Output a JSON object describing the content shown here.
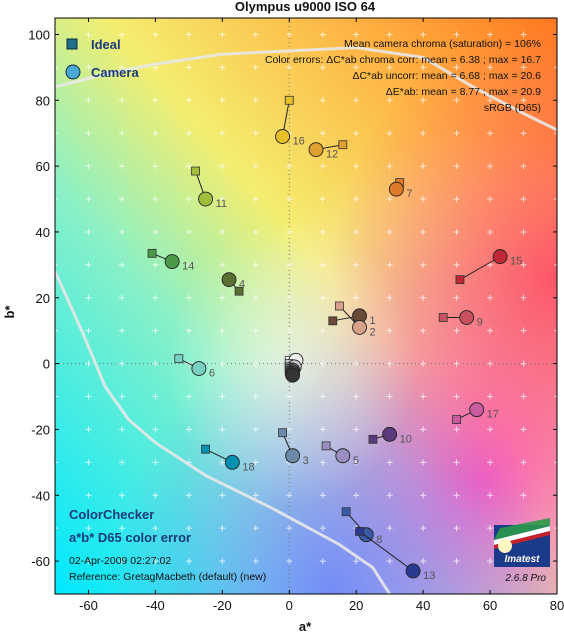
{
  "chart_data": {
    "type": "scatter",
    "title": "Olympus u9000 ISO 64",
    "xlabel": "a*",
    "ylabel": "b*",
    "xlim": [
      -70,
      80
    ],
    "ylim": [
      -70,
      105
    ],
    "xticks": [
      -60,
      -40,
      -20,
      0,
      20,
      40,
      60,
      80
    ],
    "yticks": [
      -60,
      -40,
      -20,
      0,
      20,
      40,
      60,
      80,
      100
    ],
    "grid": true,
    "legend_position": "top-left",
    "series": [
      {
        "name": "Ideal",
        "marker": "square",
        "color": "#1f6f8b"
      },
      {
        "name": "Camera",
        "marker": "circle",
        "color": "#4aa8d8"
      }
    ],
    "patches": [
      {
        "id": "1",
        "ideal": [
          13,
          13
        ],
        "camera": [
          21,
          14.5
        ],
        "color": "#6b4a3a"
      },
      {
        "id": "2",
        "ideal": [
          15,
          17.5
        ],
        "camera": [
          21,
          11
        ],
        "color": "#d9a08a"
      },
      {
        "id": "3",
        "ideal": [
          -2,
          -21
        ],
        "camera": [
          1,
          -28
        ],
        "color": "#6a8aa8"
      },
      {
        "id": "4",
        "ideal": [
          -15,
          22
        ],
        "camera": [
          -18,
          25.5
        ],
        "color": "#5a6e32"
      },
      {
        "id": "5",
        "ideal": [
          11,
          -25
        ],
        "camera": [
          16,
          -28
        ],
        "color": "#9a8ec0"
      },
      {
        "id": "6",
        "ideal": [
          -33,
          1.5
        ],
        "camera": [
          -27,
          -1.5
        ],
        "color": "#7ad0c0"
      },
      {
        "id": "7",
        "ideal": [
          33,
          55
        ],
        "camera": [
          32,
          53
        ],
        "color": "#e07a28"
      },
      {
        "id": "8",
        "ideal": [
          17,
          -45
        ],
        "camera": [
          23,
          -52
        ],
        "color": "#3a5aa8"
      },
      {
        "id": "9",
        "ideal": [
          46,
          14
        ],
        "camera": [
          53,
          14
        ],
        "color": "#c85060"
      },
      {
        "id": "10",
        "ideal": [
          25,
          -23
        ],
        "camera": [
          30,
          -21.5
        ],
        "color": "#5a3a7a"
      },
      {
        "id": "11",
        "ideal": [
          -28,
          58.5
        ],
        "camera": [
          -25,
          50
        ],
        "color": "#a0be3a"
      },
      {
        "id": "12",
        "ideal": [
          16,
          66.5
        ],
        "camera": [
          8,
          65
        ],
        "color": "#e0a030"
      },
      {
        "id": "13",
        "ideal": [
          21,
          -51
        ],
        "camera": [
          37,
          -63
        ],
        "color": "#2a3a90"
      },
      {
        "id": "14",
        "ideal": [
          -41,
          33.5
        ],
        "camera": [
          -35,
          31
        ],
        "color": "#4a9a4a"
      },
      {
        "id": "15",
        "ideal": [
          51,
          25.5
        ],
        "camera": [
          63,
          32.5
        ],
        "color": "#c02838"
      },
      {
        "id": "16",
        "ideal": [
          0,
          80
        ],
        "camera": [
          -2,
          69
        ],
        "color": "#e8c028"
      },
      {
        "id": "17",
        "ideal": [
          50,
          -17
        ],
        "camera": [
          56,
          -14
        ],
        "color": "#c85aa0"
      },
      {
        "id": "18",
        "ideal": [
          -25,
          -26
        ],
        "camera": [
          -17,
          -30
        ],
        "color": "#0090b0"
      },
      {
        "id": "",
        "ideal": [
          0,
          1
        ],
        "camera": [
          2,
          1
        ],
        "color": "#f2f2f2"
      },
      {
        "id": "",
        "ideal": [
          0,
          0
        ],
        "camera": [
          1.5,
          -1
        ],
        "color": "#c8c8c8"
      },
      {
        "id": "",
        "ideal": [
          0,
          -1
        ],
        "camera": [
          1,
          -2
        ],
        "color": "#a0a0a0"
      },
      {
        "id": "",
        "ideal": [
          0,
          -1.5
        ],
        "camera": [
          1,
          -2.5
        ],
        "color": "#7a7a7a"
      },
      {
        "id": "",
        "ideal": [
          0,
          -2
        ],
        "camera": [
          1,
          -3
        ],
        "color": "#555555"
      },
      {
        "id": "",
        "ideal": [
          0,
          -2.5
        ],
        "camera": [
          1,
          -3.5
        ],
        "color": "#353535"
      }
    ],
    "annotations": {
      "stats": [
        "Mean camera chroma (saturation) = 106%",
        "Color errors:  ΔC*ab chroma corr:  mean = 6.38 ;  max = 16.7",
        "ΔC*ab uncorr:  mean = 6.68 ;  max = 20.6",
        "ΔE*ab:  mean = 8.77 ;  max = 20.9",
        "sRGB (D65)"
      ],
      "chart_name_1": "ColorChecker",
      "chart_name_2": "a*b* D65 color error",
      "date": "02-Apr-2009 02:27:02",
      "reference": "Reference: GretagMacbeth (default) (new)",
      "version": "2.6.8  Pro",
      "logo_text": "Imatest"
    }
  }
}
